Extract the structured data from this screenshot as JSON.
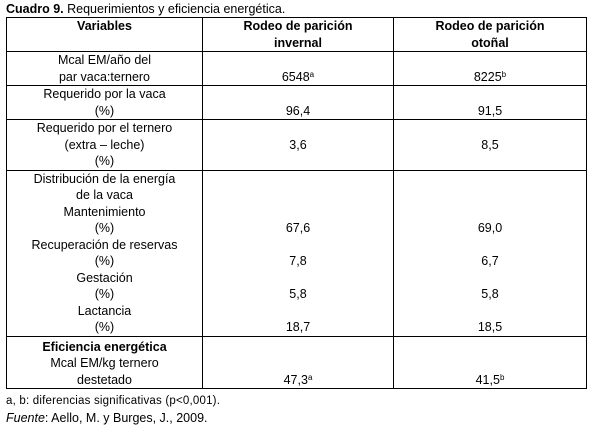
{
  "caption": {
    "label": "Cuadro 9.",
    "text": " Requerimientos y eficiencia energética."
  },
  "header": {
    "col1": "Variables",
    "col2_line1": "Rodeo de parición",
    "col2_line2": "invernal",
    "col3_line1": "Rodeo de parición",
    "col3_line2": "otoñal"
  },
  "rows": {
    "mcal_year": {
      "label_line1": "Mcal EM/año del",
      "label_line2": "par vaca:ternero",
      "invernal": "6548",
      "invernal_sup": "a",
      "otonal": "8225",
      "otonal_sup": "b"
    },
    "req_vaca": {
      "label_line1": "Requerido por la vaca",
      "label_line2": "(%)",
      "invernal": "96,4",
      "otonal": "91,5"
    },
    "req_ternero": {
      "label_line1": "Requerido por el ternero",
      "label_line2": "(extra – leche)",
      "label_line3": "(%)",
      "invernal": "3,6",
      "otonal": "8,5"
    }
  },
  "distribucion": {
    "title_line1": "Distribución de la energía",
    "title_line2": "de la vaca",
    "items": [
      {
        "label": "Mantenimiento",
        "unit": "(%)",
        "invernal": "67,6",
        "otonal": "69,0"
      },
      {
        "label": "Recuperación de reservas",
        "unit": "(%)",
        "invernal": "7,8",
        "otonal": "6,7"
      },
      {
        "label": "Gestación",
        "unit": "(%)",
        "invernal": "5,8",
        "otonal": "5,8"
      },
      {
        "label": "Lactancia",
        "unit": "(%)",
        "invernal": "18,7",
        "otonal": "18,5"
      }
    ]
  },
  "eficiencia": {
    "title": "Eficiencia energética",
    "label_line1": "Mcal EM/kg ternero",
    "label_line2": "destetado",
    "invernal": "47,3",
    "invernal_sup": "a",
    "otonal": "41,5",
    "otonal_sup": "b"
  },
  "footnote": "a, b: diferencias significativas (p<0,001).",
  "source": {
    "label": "Fuente",
    "text": ": Aello, M. y Burges, J., 2009."
  }
}
